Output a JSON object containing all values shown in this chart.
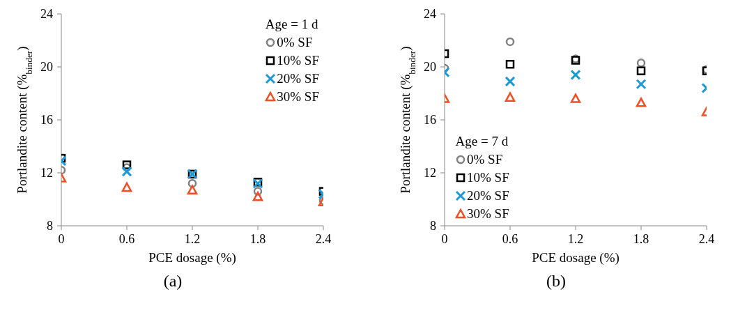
{
  "chart_data": [
    {
      "type": "scatter",
      "xlabel": "PCE dosage (%)",
      "ylabel": "Portlandite content (%$_{binder}$)",
      "legend_title": "Age = 1 d",
      "legend": "top right",
      "annotations": [
        "(a)"
      ],
      "x": [
        0,
        0.6,
        1.2,
        1.8,
        2.4
      ],
      "xlim": [
        0,
        2.4
      ],
      "xticks": [
        0,
        0.6,
        1.2,
        1.8,
        2.4
      ],
      "ylim": [
        8,
        24
      ],
      "yticks": [
        8,
        12,
        16,
        20,
        24
      ],
      "grid": false,
      "series": [
        {
          "name": "0% SF",
          "color": "#808080",
          "marker": "circle",
          "values": [
            12.2,
            12.4,
            11.2,
            10.6,
            9.9
          ]
        },
        {
          "name": "10% SF",
          "color": "#000000",
          "marker": "square",
          "values": [
            13.1,
            12.6,
            11.9,
            11.3,
            10.6
          ]
        },
        {
          "name": "20% SF",
          "color": "#1a9ad6",
          "marker": "cross",
          "values": [
            12.9,
            12.1,
            11.9,
            11.2,
            10.4
          ]
        },
        {
          "name": "30% SF",
          "color": "#f04e23",
          "marker": "triangle",
          "values": [
            11.6,
            10.9,
            10.7,
            10.2,
            9.8
          ]
        }
      ]
    },
    {
      "type": "scatter",
      "xlabel": "PCE dosage (%)",
      "ylabel": "Portlandite content (%$_{binder}$)",
      "legend_title": "Age = 7 d",
      "legend": "bottom left",
      "annotations": [
        "(b)"
      ],
      "x": [
        0,
        0.6,
        1.2,
        1.8,
        2.4
      ],
      "xlim": [
        0,
        2.4
      ],
      "xticks": [
        0,
        0.6,
        1.2,
        1.8,
        2.4
      ],
      "ylim": [
        8,
        24
      ],
      "yticks": [
        8,
        12,
        16,
        20,
        24
      ],
      "grid": false,
      "series": [
        {
          "name": "0% SF",
          "color": "#808080",
          "marker": "circle",
          "values": [
            19.9,
            21.9,
            20.6,
            20.3,
            19.8
          ]
        },
        {
          "name": "10% SF",
          "color": "#000000",
          "marker": "square",
          "values": [
            21.0,
            20.2,
            20.5,
            19.7,
            19.7
          ]
        },
        {
          "name": "20% SF",
          "color": "#1a9ad6",
          "marker": "cross",
          "values": [
            19.6,
            18.9,
            19.4,
            18.7,
            18.4
          ]
        },
        {
          "name": "30% SF",
          "color": "#f04e23",
          "marker": "triangle",
          "values": [
            17.6,
            17.7,
            17.6,
            17.3,
            16.6
          ]
        }
      ]
    }
  ]
}
